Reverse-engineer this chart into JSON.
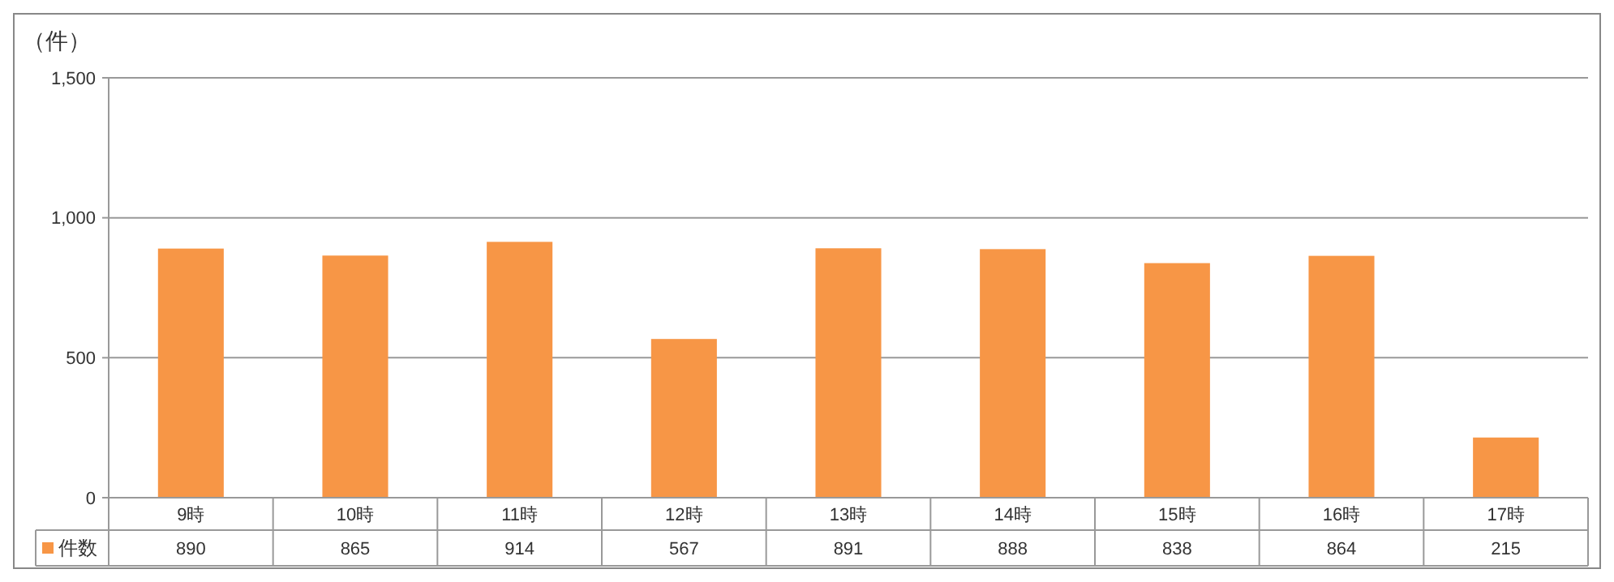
{
  "chart_data": {
    "type": "bar",
    "ylabel": "（件）",
    "categories": [
      "9時",
      "10時",
      "11時",
      "12時",
      "13時",
      "14時",
      "15時",
      "16時",
      "17時"
    ],
    "series": [
      {
        "name": "件数",
        "color": "#f79646",
        "values": [
          890,
          865,
          914,
          567,
          891,
          888,
          838,
          864,
          215
        ]
      }
    ],
    "ylim": [
      0,
      1500
    ],
    "yticks": [
      0,
      {
        "value": 500,
        "label": "500"
      },
      {
        "value": 1000,
        "label": "1,000"
      },
      {
        "value": 1500,
        "label": "1,500"
      }
    ],
    "grid": "y",
    "data_labels": true,
    "legend": "bottom left"
  }
}
